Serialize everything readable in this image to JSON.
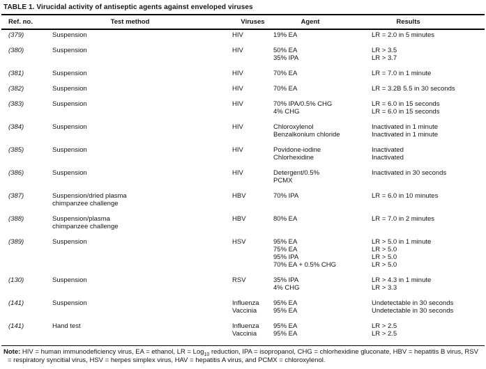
{
  "title": "TABLE 1. Virucidal activity of antiseptic agents against enveloped viruses",
  "columns": {
    "ref": "Ref. no.",
    "method": "Test method",
    "viruses": "Viruses",
    "agent": "Agent",
    "results": "Results"
  },
  "rows": [
    {
      "ref": "(379)",
      "method": [
        "Suspension"
      ],
      "viruses": [
        "HIV"
      ],
      "agents": [
        "19% EA"
      ],
      "results": [
        "LR = 2.0 in 5 minutes"
      ]
    },
    {
      "ref": "(380)",
      "method": [
        "Suspension"
      ],
      "viruses": [
        "HIV"
      ],
      "agents": [
        "50% EA",
        "35% IPA"
      ],
      "results": [
        "LR > 3.5",
        "LR > 3.7"
      ]
    },
    {
      "ref": "(381)",
      "method": [
        "Suspension"
      ],
      "viruses": [
        "HIV"
      ],
      "agents": [
        "70% EA"
      ],
      "results": [
        "LR = 7.0 in 1 minute"
      ]
    },
    {
      "ref": "(382)",
      "method": [
        "Suspension"
      ],
      "viruses": [
        "HIV"
      ],
      "agents": [
        "70% EA"
      ],
      "results": [
        "LR = 3.2B 5.5 in 30 seconds"
      ]
    },
    {
      "ref": "(383)",
      "method": [
        "Suspension"
      ],
      "viruses": [
        "HIV"
      ],
      "agents": [
        "70% IPA/0.5% CHG",
        "4% CHG"
      ],
      "results": [
        "LR = 6.0 in 15 seconds",
        "LR = 6.0 in 15 seconds"
      ]
    },
    {
      "ref": "(384)",
      "method": [
        "Suspension"
      ],
      "viruses": [
        "HIV"
      ],
      "agents": [
        "Chloroxylenol",
        "Benzalkonium chloride"
      ],
      "results": [
        "Inactivated in 1 minute",
        "Inactivated in 1 minute"
      ]
    },
    {
      "ref": "(385)",
      "method": [
        "Suspension"
      ],
      "viruses": [
        "HIV"
      ],
      "agents": [
        "Povidone-iodine",
        "Chlorhexidine"
      ],
      "results": [
        "Inactivated",
        "Inactivated"
      ]
    },
    {
      "ref": "(386)",
      "method": [
        "Suspension"
      ],
      "viruses": [
        "HIV"
      ],
      "agents": [
        "Detergent/0.5%",
        "PCMX"
      ],
      "results": [
        "Inactivated in 30 seconds"
      ]
    },
    {
      "ref": "(387)",
      "method": [
        "Suspension/dried plasma",
        "chimpanzee challenge"
      ],
      "viruses": [
        "HBV"
      ],
      "agents": [
        "70% IPA"
      ],
      "results": [
        "LR = 6.0 in 10 minutes"
      ]
    },
    {
      "ref": "(388)",
      "method": [
        "Suspension/plasma",
        "chimpanzee challenge"
      ],
      "viruses": [
        "HBV"
      ],
      "agents": [
        "80% EA"
      ],
      "results": [
        "LR = 7.0 in 2 minutes"
      ]
    },
    {
      "ref": "(389)",
      "method": [
        "Suspension"
      ],
      "viruses": [
        "HSV"
      ],
      "agents": [
        "95% EA",
        "75% EA",
        "95% IPA",
        "70% EA + 0.5% CHG"
      ],
      "results": [
        "LR > 5.0 in 1 minute",
        "LR > 5.0",
        "LR > 5.0",
        "LR > 5.0"
      ]
    },
    {
      "ref": "(130)",
      "method": [
        "Suspension"
      ],
      "viruses": [
        "RSV"
      ],
      "agents": [
        "35% IPA",
        "4% CHG"
      ],
      "results": [
        "LR > 4.3 in 1 minute",
        "LR > 3.3"
      ]
    },
    {
      "ref": "(141)",
      "method": [
        "Suspension"
      ],
      "viruses": [
        "Influenza",
        "Vaccinia"
      ],
      "agents": [
        "95% EA",
        "95% EA"
      ],
      "results": [
        "Undetectable in 30 seconds",
        "Undetectable in 30 seconds"
      ]
    },
    {
      "ref": "(141)",
      "method": [
        "Hand test"
      ],
      "viruses": [
        "Influenza",
        "Vaccinia"
      ],
      "agents": [
        "95% EA",
        "95% EA"
      ],
      "results": [
        "LR > 2.5",
        "LR > 2.5"
      ]
    }
  ],
  "note": {
    "label": "Note:",
    "before_sub": " HIV = human immunodeficiency virus, EA = ethanol, LR = Log",
    "sub": "10",
    "after_sub": " reduction, IPA = isopropanol, CHG = chlorhexidine gluconate, HBV = hepatitis B virus, RSV = respiratory syncitial virus, HSV = herpes simplex virus, HAV = hepatitis A virus, and PCMX = chloroxylenol."
  },
  "colors": {
    "text": "#141414",
    "background": "#ffffff",
    "rule": "#000000"
  }
}
